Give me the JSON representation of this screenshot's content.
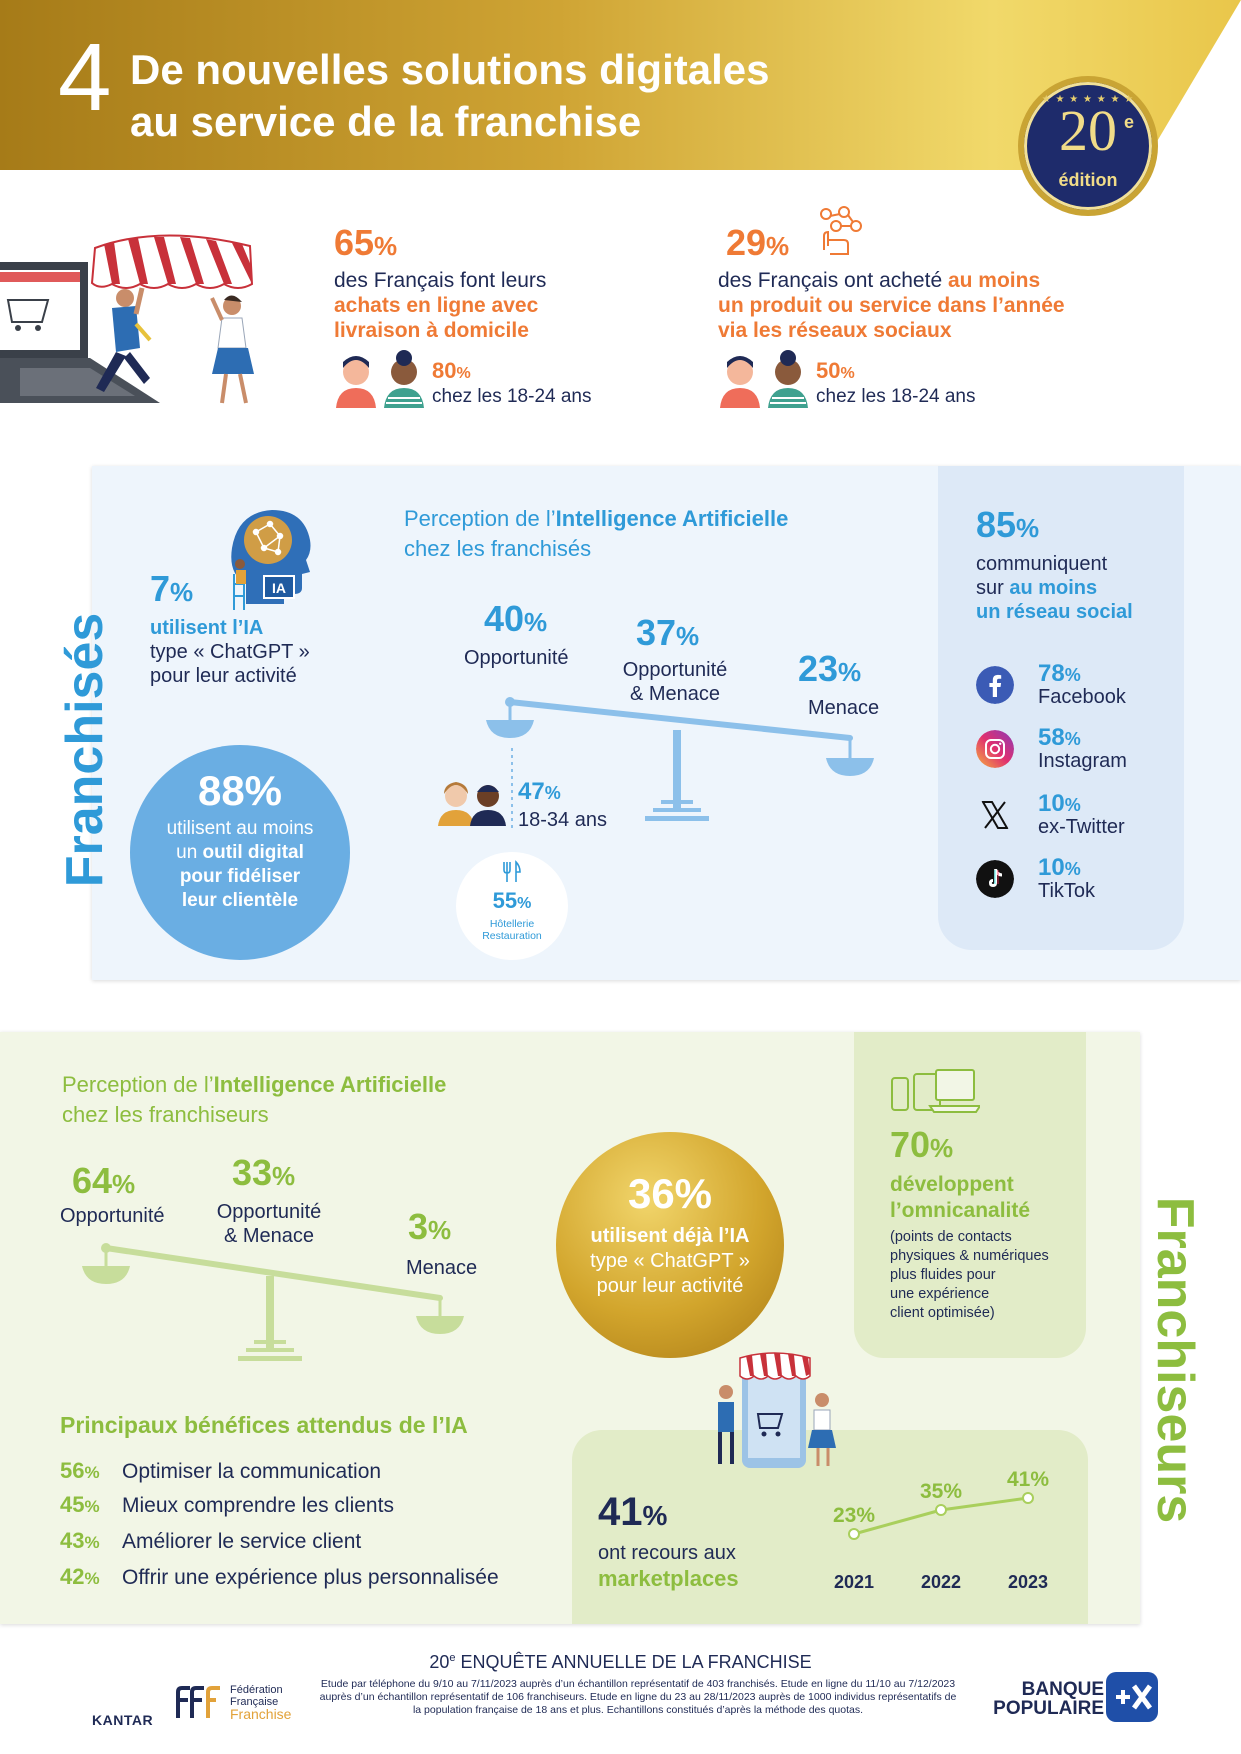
{
  "header": {
    "number": "4",
    "title_line1": "De nouvelles solutions digitales",
    "title_line2": "au service de la franchise",
    "edition_num": "20",
    "edition_sup": "e",
    "edition_label": "édition"
  },
  "top_stats": {
    "left": {
      "pct_num": "65",
      "pct_sign": "%",
      "text_line1": "des Français font leurs",
      "text_bold1": "achats en ligne avec",
      "text_bold2": "livraison à domicile",
      "sub_num": "80",
      "sub_sign": "%",
      "sub_label": "chez les 18-24 ans"
    },
    "right": {
      "pct_num": "29",
      "pct_sign": "%",
      "text_plain": "des Français ont acheté ",
      "text_bold1": "au moins",
      "text_bold2": "un produit ou service dans l’année",
      "text_bold3": "via les réseaux sociaux",
      "sub_num": "50",
      "sub_sign": "%",
      "sub_label": "chez les 18-24 ans"
    }
  },
  "franchises": {
    "side_label": "Franchisés",
    "ia_use": {
      "pct_num": "7",
      "pct_sign": "%",
      "bold": "utilisent l’IA",
      "line2": "type « ChatGPT »",
      "line3": "pour leur activité",
      "icon_label": "IA"
    },
    "perception_title_plain": "Perception de l’",
    "perception_title_bold": "Intelligence Artificielle",
    "perception_title_line2": "chez les franchisés",
    "scale": {
      "opp_pct": "40",
      "opp_label": "Opportunité",
      "mix_pct": "37",
      "mix_label1": "Opportunité",
      "mix_label2": "& Menace",
      "threat_pct": "23",
      "threat_label": "Menace",
      "sign": "%"
    },
    "young": {
      "pct": "47",
      "sign": "%",
      "label": "18-34 ans"
    },
    "hotel": {
      "pct": "55",
      "sign": "%",
      "label1": "Hôtellerie",
      "label2": "Restauration"
    },
    "digital_tool": {
      "pct": "88%",
      "line1": "utilisent au moins",
      "line2_plain": "un ",
      "line2_bold": "outil digital",
      "line3": "pour fidéliser",
      "line4": "leur clientèle"
    },
    "social": {
      "pct_num": "85",
      "pct_sign": "%",
      "line1": "communiquent",
      "line2_plain": "sur ",
      "line2_bold": "au moins",
      "line3_bold": "un réseau social",
      "networks": [
        {
          "pct": "78",
          "name": "Facebook",
          "icon": "facebook-icon",
          "color": "#3b5bb5"
        },
        {
          "pct": "58",
          "name": "Instagram",
          "icon": "instagram-icon",
          "color": "#d62c7b"
        },
        {
          "pct": "10",
          "name": "ex-Twitter",
          "icon": "x-twitter-icon",
          "color": "#111111"
        },
        {
          "pct": "10",
          "name": "TikTok",
          "icon": "tiktok-icon",
          "color": "#111111"
        }
      ],
      "sign": "%"
    }
  },
  "franchiseurs": {
    "side_label": "Franchiseurs",
    "perception_title_plain": "Perception de l’",
    "perception_title_bold": "Intelligence Artificielle",
    "perception_title_line2": "chez les franchiseurs",
    "scale": {
      "opp_pct": "64",
      "opp_label": "Opportunité",
      "mix_pct": "33",
      "mix_label1": "Opportunité",
      "mix_label2": "& Menace",
      "threat_pct": "3",
      "threat_label": "Menace",
      "sign": "%"
    },
    "ia_use": {
      "pct": "36%",
      "bold": "utilisent déjà l’IA",
      "line2": "type « ChatGPT »",
      "line3": "pour leur activité"
    },
    "omni": {
      "pct_num": "70",
      "pct_sign": "%",
      "bold1": "développent",
      "bold2": "l’omnicanalité",
      "note1": "(points de contacts",
      "note2": "physiques & numériques",
      "note3": "plus fluides pour",
      "note4": "une expérience",
      "note5": "client optimisée)"
    },
    "benefits_title": "Principaux bénéfices attendus de l’IA",
    "benefits": [
      {
        "pct": "56",
        "label": "Optimiser la communication"
      },
      {
        "pct": "45",
        "label": "Mieux comprendre les clients"
      },
      {
        "pct": "43",
        "label": "Améliorer le service client"
      },
      {
        "pct": "42",
        "label": "Offrir une expérience plus personnalisée"
      }
    ],
    "benefit_sign": "%",
    "marketplaces": {
      "pct_num": "41",
      "pct_sign": "%",
      "line1": "ont recours aux",
      "line2": "marketplaces"
    }
  },
  "chart_data": {
    "type": "line",
    "x": [
      "2021",
      "2022",
      "2023"
    ],
    "series": [
      {
        "values": [
          23,
          35,
          41
        ]
      }
    ],
    "labels": [
      "23%",
      "35%",
      "41%"
    ]
  },
  "footer": {
    "title_num": "20",
    "title_sup": "e",
    "title_rest": " ENQUÊTE ANNUELLE DE LA FRANCHISE",
    "note": "Etude par téléphone du 9/10 au 7/11/2023 auprès d’un échantillon représentatif de 403 franchisés. Etude en ligne du 11/10 au 7/12/2023 auprès d’un échantillon représentatif de 106 franchiseurs. Etude en ligne du 23 au 28/11/2023 auprès de 1000 individus représentatifs de la population française de 18 ans et plus. Echantillons constitués d’après la méthode des quotas.",
    "kantar": "KANTAR",
    "fff_line1": "Fédération",
    "fff_line2": "Française",
    "fff_line3": "Franchise",
    "bp_line1": "BANQUE",
    "bp_line2": "POPULAIRE"
  },
  "colors": {
    "gold": "#c9a434",
    "orange": "#ef7a35",
    "blue": "#2f9ad8",
    "green": "#8dbd3f",
    "navy": "#1f2a55"
  }
}
